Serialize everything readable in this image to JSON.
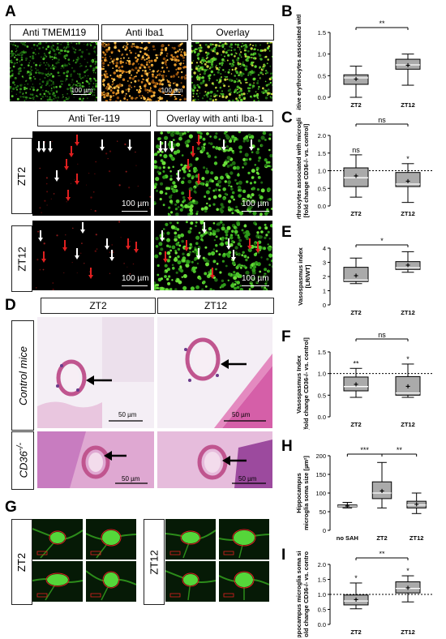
{
  "panels": {
    "A": "A",
    "B": "B",
    "C": "C",
    "D": "D",
    "E": "E",
    "F": "F",
    "G": "G",
    "H": "H",
    "I": "I"
  },
  "panelA": {
    "top_labels": [
      "Anti TMEM119",
      "Anti Iba1",
      "Overlay"
    ],
    "mid_labels": [
      "Anti Ter-119",
      "Overlay with anti Iba-1"
    ],
    "row_labels": [
      "ZT2",
      "ZT12"
    ],
    "scalebar_small": "100 µm",
    "scalebar": "100 µm"
  },
  "panelD": {
    "col_labels": [
      "ZT2",
      "ZT12"
    ],
    "row_labels": [
      "Control mice",
      "CD36"
    ],
    "row_label_sup": "-/-",
    "scalebar": "50 µm"
  },
  "panelG": {
    "row_labels": [
      "ZT2",
      "ZT12"
    ],
    "scalebar": "10 µm"
  },
  "chart_data": [
    {
      "id": "B",
      "type": "box",
      "ylabel": "TER-119 positive erythrocytes associated with microglia",
      "categories": [
        "ZT2",
        "ZT12"
      ],
      "ylim": [
        0,
        1.5
      ],
      "yticks": [
        "0.0",
        "0.5",
        "1.0",
        "1.5"
      ],
      "boxes": [
        {
          "min": 0.0,
          "q1": 0.3,
          "median": 0.45,
          "q3": 0.52,
          "max": 0.72,
          "mean": 0.42,
          "color": "#aaaaaa"
        },
        {
          "min": 0.28,
          "q1": 0.65,
          "median": 0.75,
          "q3": 0.88,
          "max": 1.0,
          "mean": 0.74,
          "color": "#aaaaaa"
        }
      ],
      "significance": [
        {
          "from": 0,
          "to": 1,
          "text": "**"
        }
      ]
    },
    {
      "id": "C",
      "type": "box",
      "ylabel": "Erythrocytes associated with microglia",
      "ylabel2": "[fold change CD36-/- vs. control]",
      "categories": [
        "ZT2",
        "ZT12"
      ],
      "ylim": [
        0,
        2.0
      ],
      "yticks": [
        "0.0",
        "0.5",
        "1.0",
        "1.5",
        "2.0"
      ],
      "reference_line": 1.0,
      "boxes": [
        {
          "min": 0.25,
          "q1": 0.55,
          "median": 0.8,
          "q3": 1.08,
          "max": 1.45,
          "mean": 0.85,
          "color": "#aaaaaa"
        },
        {
          "min": 0.1,
          "q1": 0.55,
          "median": 0.62,
          "q3": 0.95,
          "max": 1.2,
          "mean": 0.7,
          "color": "#aaaaaa"
        }
      ],
      "above": [
        "ns",
        "*"
      ],
      "significance": [
        {
          "from": 0,
          "to": 1,
          "text": "ns"
        }
      ]
    },
    {
      "id": "E",
      "type": "box",
      "ylabel": "Vasospasmus index",
      "ylabel2": "[LR/WT]",
      "categories": [
        "ZT2",
        "ZT12"
      ],
      "ylim": [
        0,
        4
      ],
      "yticks": [
        "0",
        "1",
        "2",
        "3",
        "4"
      ],
      "boxes": [
        {
          "min": 1.5,
          "q1": 1.65,
          "median": 1.75,
          "q3": 2.65,
          "max": 3.3,
          "mean": 2.05,
          "color": "#aaaaaa"
        },
        {
          "min": 2.3,
          "q1": 2.5,
          "median": 2.62,
          "q3": 3.05,
          "max": 3.75,
          "mean": 2.8,
          "color": "#aaaaaa"
        }
      ],
      "significance": [
        {
          "from": 0,
          "to": 1,
          "text": "*"
        }
      ]
    },
    {
      "id": "F",
      "type": "box",
      "ylabel": "Vasospasmus Index",
      "ylabel2": "[fold change CD36-/- vs. control]",
      "categories": [
        "ZT2",
        "ZT12"
      ],
      "ylim": [
        0,
        1.5
      ],
      "yticks": [
        "0.0",
        "0.5",
        "1.0",
        "1.5"
      ],
      "reference_line": 1.0,
      "boxes": [
        {
          "min": 0.45,
          "q1": 0.6,
          "median": 0.7,
          "q3": 0.92,
          "max": 1.12,
          "mean": 0.75,
          "color": "#aaaaaa"
        },
        {
          "min": 0.45,
          "q1": 0.5,
          "median": 0.55,
          "q3": 0.93,
          "max": 1.22,
          "mean": 0.7,
          "color": "#aaaaaa"
        }
      ],
      "above": [
        "**",
        "*"
      ],
      "significance": [
        {
          "from": 0,
          "to": 1,
          "text": "ns"
        }
      ]
    },
    {
      "id": "H",
      "type": "box",
      "ylabel": "Hippocampus",
      "ylabel2": "microglia soma size [µm²]",
      "categories": [
        "no SAH",
        "ZT2",
        "ZT12"
      ],
      "ylim": [
        0,
        200
      ],
      "yticks": [
        "0",
        "50",
        "100",
        "150",
        "200"
      ],
      "boxes": [
        {
          "min": 60,
          "q1": 63,
          "median": 65,
          "q3": 68,
          "max": 75,
          "mean": 65,
          "color": "#bbbbbb"
        },
        {
          "min": 60,
          "q1": 85,
          "median": 100,
          "q3": 130,
          "max": 182,
          "mean": 105,
          "color": "#aaaaaa"
        },
        {
          "min": 45,
          "q1": 60,
          "median": 68,
          "q3": 78,
          "max": 100,
          "mean": 70,
          "color": "#aaaaaa"
        }
      ],
      "significance": [
        {
          "from": 0,
          "to": 1,
          "text": "***"
        },
        {
          "from": 1,
          "to": 2,
          "text": "**"
        }
      ]
    },
    {
      "id": "I",
      "type": "box",
      "ylabel": "Hippocampus microglia soma size",
      "ylabel2": "[fold change CD36-/- vs. control]",
      "categories": [
        "ZT2",
        "ZT12"
      ],
      "ylim": [
        0,
        2.0
      ],
      "yticks": [
        "0.0",
        "0.5",
        "1.0",
        "1.5",
        "2.0"
      ],
      "reference_line": 1.0,
      "boxes": [
        {
          "min": 0.52,
          "q1": 0.65,
          "median": 0.78,
          "q3": 0.98,
          "max": 1.38,
          "mean": 0.82,
          "color": "#aaaaaa"
        },
        {
          "min": 0.75,
          "q1": 1.05,
          "median": 1.2,
          "q3": 1.42,
          "max": 1.62,
          "mean": 1.22,
          "color": "#aaaaaa"
        }
      ],
      "above": [
        "*",
        "*"
      ],
      "significance": [
        {
          "from": 0,
          "to": 1,
          "text": "**"
        }
      ]
    }
  ]
}
